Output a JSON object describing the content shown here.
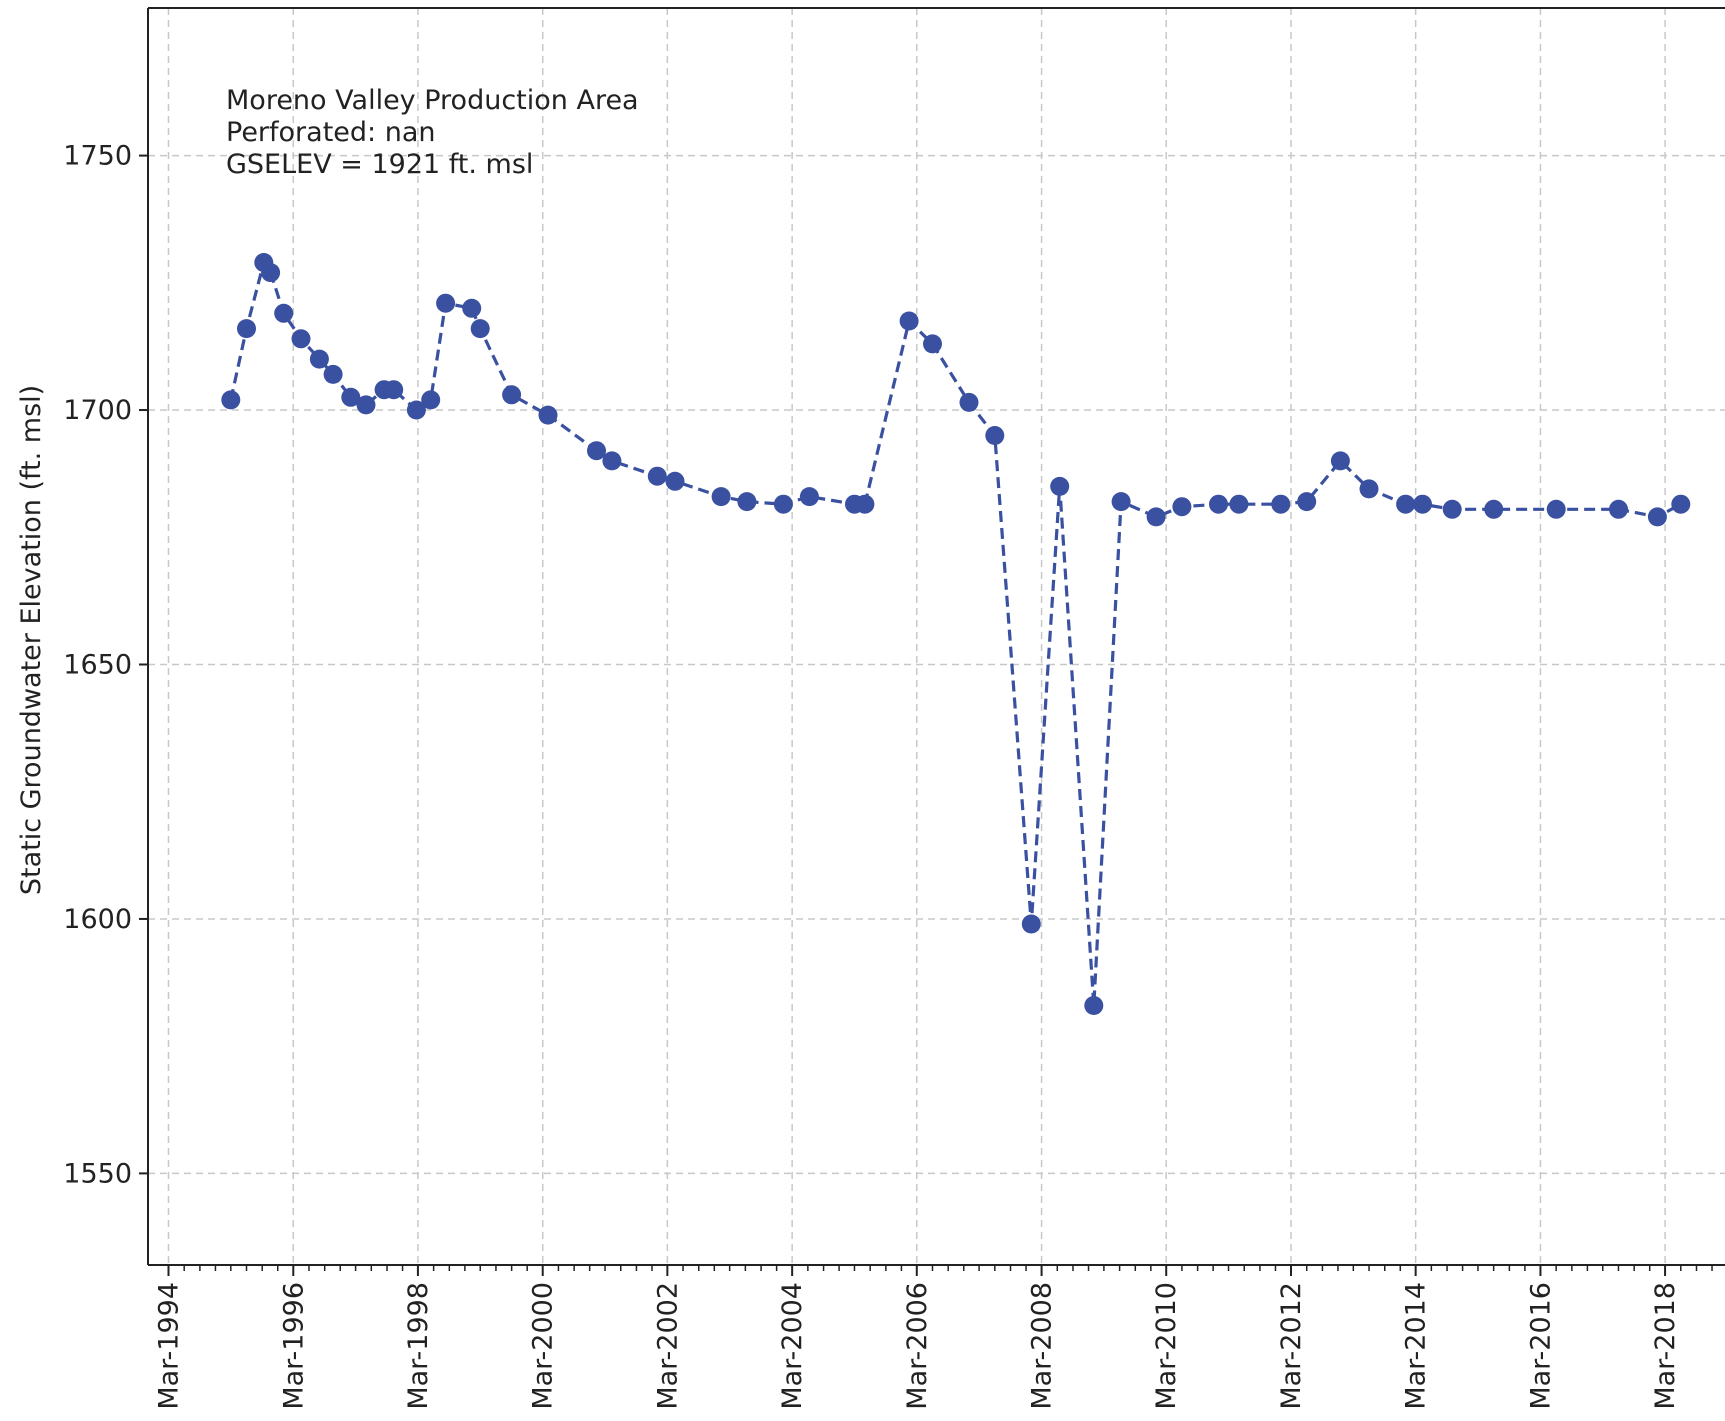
{
  "chart_data": {
    "type": "line",
    "ylabel": "Static Groundwater Elevation (ft. msl)",
    "xlabel": "",
    "annotation_lines": [
      "Moreno Valley Production Area",
      "Perforated: nan",
      "GSELEV = 1921 ft. msl"
    ],
    "ylim": [
      1532,
      1779
    ],
    "xlim": [
      "1993-11-01",
      "2019-02-15"
    ],
    "y_ticks": [
      1550,
      1600,
      1650,
      1700,
      1750
    ],
    "x_ticks": [
      {
        "date": "1994-03-01",
        "label": "Mar-1994"
      },
      {
        "date": "1996-03-01",
        "label": "Mar-1996"
      },
      {
        "date": "1998-03-01",
        "label": "Mar-1998"
      },
      {
        "date": "2000-03-01",
        "label": "Mar-2000"
      },
      {
        "date": "2002-03-01",
        "label": "Mar-2002"
      },
      {
        "date": "2004-03-01",
        "label": "Mar-2004"
      },
      {
        "date": "2006-03-01",
        "label": "Mar-2006"
      },
      {
        "date": "2008-03-01",
        "label": "Mar-2008"
      },
      {
        "date": "2010-03-01",
        "label": "Mar-2010"
      },
      {
        "date": "2012-03-01",
        "label": "Mar-2012"
      },
      {
        "date": "2014-03-01",
        "label": "Mar-2014"
      },
      {
        "date": "2016-03-01",
        "label": "Mar-2016"
      },
      {
        "date": "2018-03-01",
        "label": "Mar-2018"
      }
    ],
    "grid": true,
    "line_style": "dashed",
    "marker": "circle",
    "color": "#3a50a0",
    "series": [
      {
        "x": [
          "1995-03-01",
          "1995-06-01",
          "1995-09-10",
          "1995-10-20",
          "1996-01-05",
          "1996-04-15",
          "1996-08-01",
          "1996-10-20",
          "1997-02-01",
          "1997-05-01",
          "1997-08-15",
          "1997-10-10",
          "1998-02-20",
          "1998-05-15",
          "1998-08-10",
          "1999-01-10",
          "1999-03-01",
          "1999-09-01",
          "2000-04-01",
          "2001-01-10",
          "2001-04-10",
          "2002-01-01",
          "2002-04-15",
          "2003-01-10",
          "2003-06-10",
          "2004-01-10",
          "2004-06-10",
          "2005-03-01",
          "2005-05-01",
          "2006-01-15",
          "2006-06-01",
          "2007-01-01",
          "2007-06-01",
          "2008-01-01",
          "2008-06-15",
          "2009-01-01",
          "2009-06-10",
          "2010-01-01",
          "2010-06-01",
          "2011-01-01",
          "2011-05-01",
          "2012-01-01",
          "2012-06-01",
          "2012-12-15",
          "2013-06-01",
          "2014-01-01",
          "2014-04-10",
          "2014-10-01",
          "2015-06-01",
          "2016-06-01",
          "2017-06-01",
          "2018-01-15",
          "2018-06-01"
        ],
        "y": [
          1702,
          1716,
          1729,
          1727,
          1719,
          1714,
          1710,
          1707,
          1702.5,
          1701,
          1704,
          1704,
          1700,
          1702,
          1721,
          1720,
          1716,
          1703,
          1699,
          1692,
          1690,
          1687,
          1686,
          1683,
          1682,
          1681.5,
          1683,
          1681.5,
          1681.5,
          1717.5,
          1713,
          1701.5,
          1695,
          1599,
          1685,
          1583,
          1682,
          1679,
          1681,
          1681.5,
          1681.5,
          1681.5,
          1682,
          1690,
          1684.5,
          1681.5,
          1681.5,
          1680.5,
          1680.5,
          1680.5,
          1680.5,
          1679,
          1681.5
        ]
      }
    ]
  }
}
